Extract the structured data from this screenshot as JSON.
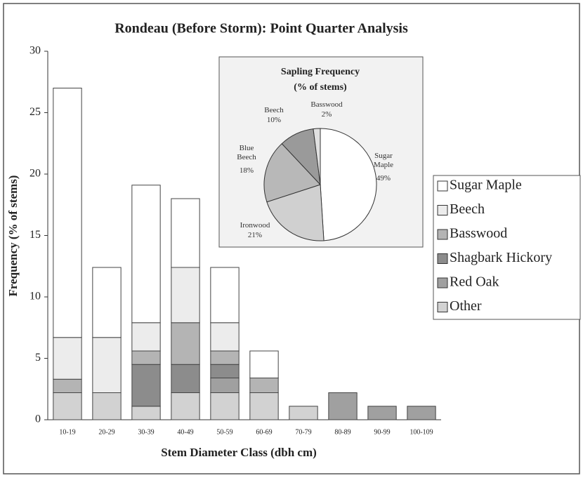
{
  "chart_data": [
    {
      "type": "bar",
      "stacked": true,
      "title": "Rondeau (Before Storm): Point Quarter Analysis",
      "x_label": "Stem Diameter Class (dbh cm)",
      "y_label": "Frequency (% of stems)",
      "categories": [
        "10-19",
        "20-29",
        "30-39",
        "40-49",
        "50-59",
        "60-69",
        "70-79",
        "80-89",
        "90-99",
        "100-109"
      ],
      "series": [
        {
          "name": "Sugar Maple",
          "color": "#ffffff",
          "values": [
            20.3,
            5.7,
            11.2,
            5.6,
            4.5,
            2.2,
            0,
            0,
            0,
            0
          ]
        },
        {
          "name": "Beech",
          "color": "#ececec",
          "values": [
            3.4,
            4.5,
            2.3,
            4.5,
            2.3,
            0,
            0,
            0,
            0,
            0
          ]
        },
        {
          "name": "Basswood",
          "color": "#b4b4b4",
          "values": [
            1.1,
            0,
            1.1,
            3.4,
            1.1,
            1.2,
            0,
            0,
            0,
            0
          ]
        },
        {
          "name": "Shagbark Hickory",
          "color": "#8c8c8c",
          "values": [
            0,
            0,
            3.4,
            2.3,
            1.1,
            0,
            0,
            0,
            0,
            0
          ]
        },
        {
          "name": "Red Oak",
          "color": "#a0a0a0",
          "values": [
            0,
            0,
            0,
            0,
            1.2,
            0,
            0,
            2.2,
            1.1,
            1.1
          ]
        },
        {
          "name": "Other",
          "color": "#d2d2d2",
          "values": [
            2.2,
            2.2,
            1.1,
            2.2,
            2.2,
            2.2,
            1.1,
            0,
            0,
            0
          ]
        }
      ],
      "ylim": [
        0,
        30
      ],
      "yticks": [
        0,
        5,
        10,
        15,
        20,
        25,
        30
      ],
      "legend": "right"
    },
    {
      "type": "pie",
      "title": "Sapling Frequency",
      "subtitle": "(% of stems)",
      "labels": [
        "Sugar Maple",
        "Ironwood",
        "Blue Beech",
        "Beech",
        "Basswood"
      ],
      "values": [
        49,
        21,
        18,
        10,
        2
      ],
      "value_labels": [
        "49%",
        "21%",
        "18%",
        "10%",
        "2%"
      ],
      "colors": [
        "#ffffff",
        "#d0d0d0",
        "#b8b8b8",
        "#9a9a9a",
        "#e0e0e0"
      ]
    }
  ]
}
